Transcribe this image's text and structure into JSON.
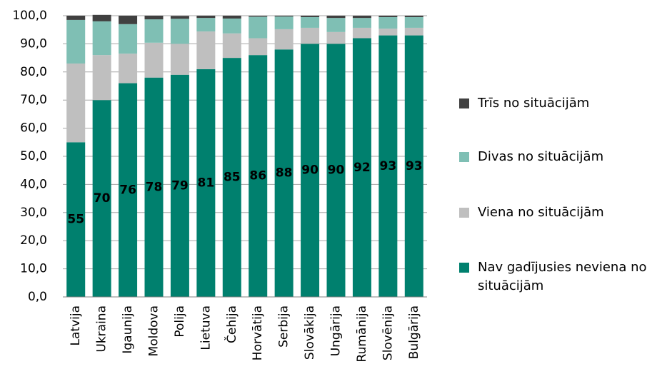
{
  "chart_data": {
    "type": "stacked_bar",
    "categories": [
      "Latvija",
      "Ukraina",
      "Igaunija",
      "Moldova",
      "Polija",
      "Lietuva",
      "Čehija",
      "Horvātija",
      "Serbija",
      "Slovākija",
      "Ungārija",
      "Rumānija",
      "Slovēnija",
      "Bulgārija"
    ],
    "series": [
      {
        "name": "Nav gadījusies neviena no situācijām",
        "color": "#00806e",
        "values": [
          55,
          70,
          76,
          78,
          79,
          81,
          85,
          86,
          88,
          90,
          90,
          92,
          93,
          93
        ],
        "show_labels": true
      },
      {
        "name": "Viena no situācijām",
        "color": "#bfbfbf",
        "values": [
          28,
          16,
          10.5,
          12.4,
          11,
          13.4,
          8.7,
          6,
          7.2,
          5.7,
          4.2,
          3.7,
          2.4,
          2.7
        ]
      },
      {
        "name": "Divas no situācijām",
        "color": "#7fbfb4",
        "values": [
          15.5,
          12,
          10.5,
          8.3,
          8.9,
          4.8,
          5.3,
          7.6,
          4.5,
          3.8,
          5,
          3.5,
          4.1,
          3.8
        ]
      },
      {
        "name": "Trīs no situācijām",
        "color": "#404040",
        "values": [
          1.5,
          2.3,
          3,
          1.3,
          1,
          0.8,
          1,
          0.3,
          0.3,
          0.5,
          0.8,
          0.8,
          0.5,
          0.5
        ]
      }
    ],
    "ylim": [
      0,
      100
    ],
    "yticks": [
      {
        "value": 0,
        "label": "0,0"
      },
      {
        "value": 10,
        "label": "10,0"
      },
      {
        "value": 20,
        "label": "20,0"
      },
      {
        "value": 30,
        "label": "30,0"
      },
      {
        "value": 40,
        "label": "40,0"
      },
      {
        "value": 50,
        "label": "50,0"
      },
      {
        "value": 60,
        "label": "60,0"
      },
      {
        "value": 70,
        "label": "70,0"
      },
      {
        "value": 80,
        "label": "80,0"
      },
      {
        "value": 90,
        "label": "90,0"
      },
      {
        "value": 100,
        "label": "100,0"
      }
    ],
    "grid": true,
    "legend": "right"
  }
}
